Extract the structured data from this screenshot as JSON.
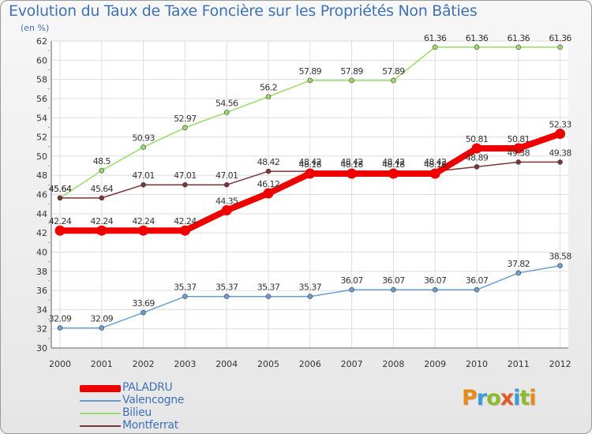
{
  "chart_data": {
    "type": "line",
    "title": "Evolution du Taux de Taxe Foncière sur les Propriétés Non Bâties",
    "ylabel": "(en %)",
    "xlabel": "",
    "x": [
      "2000",
      "2001",
      "2002",
      "2003",
      "2004",
      "2005",
      "2006",
      "2007",
      "2008",
      "2009",
      "2010",
      "2011",
      "2012"
    ],
    "ylim": [
      30,
      62
    ],
    "yticks": [
      30,
      32,
      34,
      36,
      38,
      40,
      42,
      44,
      46,
      48,
      50,
      52,
      54,
      56,
      58,
      60,
      62
    ],
    "grid": true,
    "legend_position": "bottom-left",
    "series": [
      {
        "name": "PALADRU",
        "color": "#ee0000",
        "values": [
          42.24,
          42.24,
          42.24,
          42.24,
          44.35,
          46.12,
          48.18,
          48.18,
          48.18,
          48.18,
          50.81,
          50.81,
          52.33
        ],
        "labels": [
          "42.24",
          "42.24",
          "42.24",
          "42.24",
          "44.35",
          "46.12",
          "48.18",
          "48.18",
          "48.18",
          "48.18",
          "50.81",
          "50.81",
          "52.33"
        ]
      },
      {
        "name": "Valencogne",
        "color": "#6a9ed0",
        "values": [
          32.09,
          32.09,
          33.69,
          35.37,
          35.37,
          35.37,
          35.37,
          36.07,
          36.07,
          36.07,
          36.07,
          37.82,
          38.58
        ],
        "labels": [
          "32.09",
          "32.09",
          "33.69",
          "35.37",
          "35.37",
          "35.37",
          "35.37",
          "36.07",
          "36.07",
          "36.07",
          "36.07",
          "37.82",
          "38.58"
        ]
      },
      {
        "name": "Bilieu",
        "color": "#9ada6a",
        "values": [
          45.64,
          48.5,
          50.93,
          52.97,
          54.56,
          56.2,
          57.89,
          57.89,
          57.89,
          61.36,
          61.36,
          61.36,
          61.36
        ],
        "labels": [
          "45.64",
          "48.5",
          "50.93",
          "52.97",
          "54.56",
          "56.2",
          "57.89",
          "57.89",
          "57.89",
          "61.36",
          "61.36",
          "61.36",
          "61.36"
        ]
      },
      {
        "name": "Montferrat",
        "color": "#7a3535",
        "values": [
          45.64,
          45.64,
          47.01,
          47.01,
          47.01,
          48.42,
          48.42,
          48.42,
          48.42,
          48.42,
          48.89,
          49.38,
          49.38
        ],
        "labels": [
          "45.64",
          "45.64",
          "47.01",
          "47.01",
          "47.01",
          "48.42",
          "48.42",
          "48.42",
          "48.42",
          "48.42",
          "48.89",
          "49.38",
          "49.38"
        ]
      }
    ]
  },
  "legend": {
    "items": [
      {
        "label": "PALADRU",
        "color": "#ee0000"
      },
      {
        "label": "Valencogne",
        "color": "#6a9ed0"
      },
      {
        "label": "Bilieu",
        "color": "#9ada6a"
      },
      {
        "label": "Montferrat",
        "color": "#7a3535"
      }
    ]
  },
  "logo": {
    "letters": [
      "P",
      "r",
      "o",
      "x",
      "i",
      "t",
      "i"
    ]
  }
}
